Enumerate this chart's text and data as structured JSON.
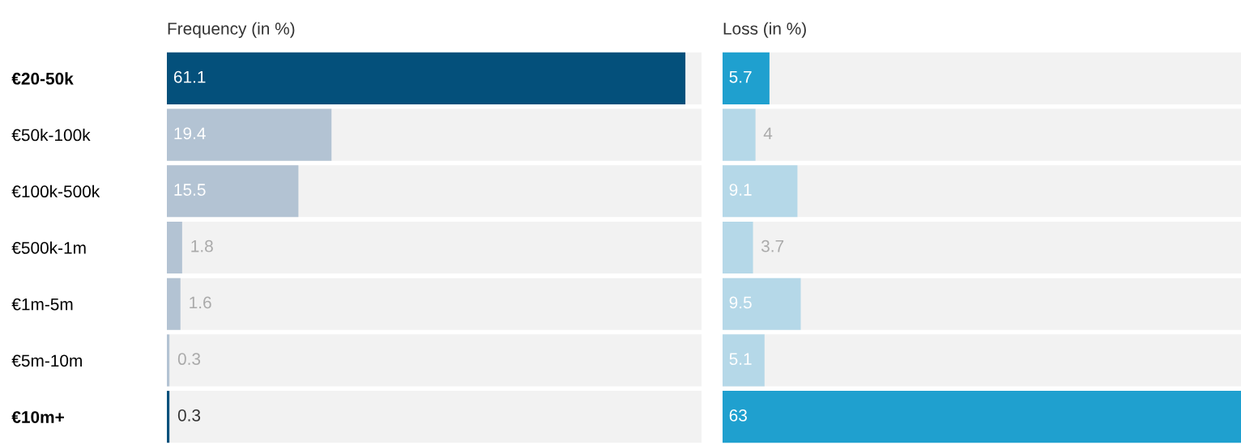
{
  "chart_data": [
    {
      "type": "bar",
      "orientation": "horizontal",
      "title": "Frequency (in %)",
      "categories": [
        "€20-50k",
        "€50k-100k",
        "€100k-500k",
        "€500k-1m",
        "€1m-5m",
        "€5m-10m",
        "€10m+"
      ],
      "values": [
        61.1,
        19.4,
        15.5,
        1.8,
        1.6,
        0.3,
        0.3
      ],
      "colors": [
        "#04507b",
        "#b3c3d3",
        "#b3c3d3",
        "#b3c3d3",
        "#b3c3d3",
        "#b3c3d3",
        "#04507b"
      ],
      "xlim": [
        0,
        63
      ],
      "data_labels": true,
      "grid": false,
      "legend": false,
      "tick_labels": "y"
    },
    {
      "type": "bar",
      "orientation": "horizontal",
      "title": "Loss (in %)",
      "values": [
        5.7,
        4,
        9.1,
        3.7,
        9.5,
        5.1,
        63
      ],
      "colors": [
        "#1fa0cf",
        "#b5d8e8",
        "#b5d8e8",
        "#b5d8e8",
        "#b5d8e8",
        "#b5d8e8",
        "#1fa0cf"
      ],
      "xlim": [
        0,
        63
      ],
      "data_labels": true,
      "grid": false,
      "legend": false,
      "tick_labels": false
    }
  ]
}
